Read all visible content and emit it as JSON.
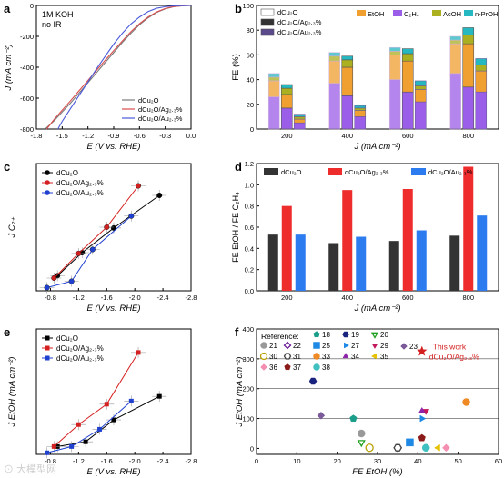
{
  "watermark": "⊙ 大模型网",
  "chart_data": [
    {
      "panel": "a",
      "type": "line",
      "annotations": [
        "1M KOH",
        "no IR"
      ],
      "xlabel": "E (V vs. RHE)",
      "ylabel": "J (mA cm⁻²)",
      "xlim": [
        -1.8,
        0.0
      ],
      "ylim": [
        -800,
        0
      ],
      "xticks": [
        "-1.8",
        "-1.5",
        "-1.2",
        "-0.9",
        "-0.6",
        "-0.3",
        "0.0"
      ],
      "yticks": [
        "0",
        "-200",
        "-400",
        "-600",
        "-800"
      ],
      "legend": [
        "dCu₂O",
        "dCu₂O/Ag₂.₃%",
        "dCu₂O/Au₂.₃%"
      ],
      "colors": [
        "#7a7a7a",
        "#d94c4c",
        "#4a5ad8"
      ],
      "series": [
        {
          "x": [
            0.0,
            -0.1,
            -0.2,
            -0.3,
            -0.4,
            -0.5,
            -0.6,
            -0.7,
            -0.8,
            -0.9,
            -1.0,
            -1.1,
            -1.2,
            -1.3,
            -1.4,
            -1.5,
            -1.6,
            -1.7
          ],
          "y": [
            0,
            -2,
            -8,
            -22,
            -45,
            -80,
            -125,
            -180,
            -240,
            -305,
            -370,
            -435,
            -500,
            -565,
            -630,
            -690,
            -750,
            -800
          ]
        },
        {
          "x": [
            0.0,
            -0.1,
            -0.2,
            -0.3,
            -0.4,
            -0.5,
            -0.6,
            -0.7,
            -0.8,
            -0.9,
            -1.0,
            -1.1,
            -1.2,
            -1.3,
            -1.4,
            -1.5,
            -1.6,
            -1.68
          ],
          "y": [
            0,
            -2,
            -7,
            -20,
            -42,
            -75,
            -118,
            -170,
            -230,
            -292,
            -355,
            -420,
            -485,
            -550,
            -615,
            -678,
            -742,
            -800
          ]
        },
        {
          "x": [
            0.0,
            -0.1,
            -0.2,
            -0.3,
            -0.4,
            -0.5,
            -0.6,
            -0.7,
            -0.8,
            -0.9,
            -1.0,
            -1.1,
            -1.2,
            -1.3,
            -1.4,
            -1.5,
            -1.55
          ],
          "y": [
            0,
            -1,
            -3,
            -8,
            -18,
            -40,
            -75,
            -120,
            -180,
            -250,
            -330,
            -410,
            -495,
            -580,
            -665,
            -750,
            -800
          ]
        }
      ]
    },
    {
      "panel": "b",
      "type": "bar",
      "xlabel": "J (mA cm⁻²)",
      "ylabel": "FE (%)",
      "ylim": [
        0,
        100
      ],
      "yticks": [
        "0",
        "20",
        "40",
        "60",
        "80",
        "100"
      ],
      "categories": [
        "200",
        "400",
        "600",
        "800"
      ],
      "legend_samples": [
        "dCu₂O",
        "dCu₂O/Ag₂.₃%",
        "dCu₂O/Au₂.₃%"
      ],
      "legend_products": [
        "EtOH",
        "C₂H₄",
        "AcOH",
        "n-PrOH"
      ],
      "product_colors": [
        "#f0a030",
        "#9b5ee8",
        "#aab020",
        "#25b8c0"
      ],
      "sample_edge_colors": [
        "#c8a4d8",
        "#555555",
        "#6b5b9a"
      ],
      "stacks": [
        {
          "name": "dCu₂O",
          "C2H4": [
            26,
            37,
            40,
            45
          ],
          "EtOH": [
            13,
            18,
            20,
            24
          ],
          "AcOH": [
            3,
            4,
            3,
            3
          ],
          "nPrOH": [
            3,
            3,
            3,
            3
          ]
        },
        {
          "name": "dCu₂O/Ag₂.₃%",
          "C2H4": [
            17,
            27,
            30,
            34
          ],
          "EtOH": [
            11,
            23,
            25,
            35
          ],
          "AcOH": [
            5,
            6,
            6,
            7
          ],
          "nPrOH": [
            3,
            3,
            4,
            6
          ]
        },
        {
          "name": "dCu₂O/Au₂.₃%",
          "C2H4": [
            5,
            10,
            22,
            30
          ],
          "EtOH": [
            3,
            5,
            10,
            17
          ],
          "AcOH": [
            2,
            2,
            3,
            5
          ],
          "nPrOH": [
            2,
            2,
            4,
            5
          ]
        }
      ]
    },
    {
      "panel": "c",
      "type": "line",
      "xlabel": "E (V vs. RHE)",
      "ylabel": "J C₂₊",
      "xlim": [
        -0.6,
        -2.8
      ],
      "ylim": [
        0,
        800
      ],
      "xticks": [
        "-0.8",
        "-1.2",
        "-1.6",
        "-2.0",
        "-2.4",
        "-2.8"
      ],
      "legend": [
        "dCu₂O",
        "dCu₂O/Ag₂.₃%",
        "dCu₂O/Au₂.₃%"
      ],
      "colors": [
        "#000000",
        "#d42020",
        "#2040d0"
      ],
      "series": [
        {
          "x": [
            -0.9,
            -1.25,
            -1.7,
            -2.35
          ],
          "y": [
            95,
            240,
            395,
            600
          ]
        },
        {
          "x": [
            -0.85,
            -1.2,
            -1.6,
            -2.05
          ],
          "y": [
            80,
            235,
            400,
            660
          ]
        },
        {
          "x": [
            -0.75,
            -1.1,
            -1.4,
            -1.95
          ],
          "y": [
            20,
            60,
            260,
            470
          ]
        }
      ]
    },
    {
      "panel": "d",
      "type": "bar",
      "xlabel": "J (mA cm⁻²)",
      "ylabel": "FE EtOH / FE C₂H₄",
      "ylim": [
        0,
        1.2
      ],
      "yticks": [
        "0.0",
        "0.2",
        "0.4",
        "0.6",
        "0.8",
        "1.0",
        "1.2"
      ],
      "categories": [
        "200",
        "400",
        "600",
        "800"
      ],
      "legend": [
        "dCu₂O",
        "dCu₂O/Ag₂.₃%",
        "dCu₂O/Au₂.₃%"
      ],
      "colors": [
        "#333333",
        "#ee2c2c",
        "#2c7cf0"
      ],
      "series": [
        {
          "name": "dCu₂O",
          "values": [
            0.53,
            0.45,
            0.47,
            0.52
          ]
        },
        {
          "name": "dCu₂O/Ag₂.₃%",
          "values": [
            0.8,
            0.95,
            0.96,
            1.17
          ]
        },
        {
          "name": "dCu₂O/Au₂.₃%",
          "values": [
            0.53,
            0.51,
            0.57,
            0.71
          ]
        }
      ]
    },
    {
      "panel": "e",
      "type": "line",
      "xlabel": "E (V vs. RHE)",
      "ylabel": "J EtOH (mA cm⁻²)",
      "xlim": [
        -0.6,
        -2.8
      ],
      "ylim": [
        0,
        400
      ],
      "xticks": [
        "-0.8",
        "-1.2",
        "-1.6",
        "-2.0",
        "-2.4",
        "-2.8"
      ],
      "legend": [
        "dCu₂O",
        "dCu₂O/Ag₂.₃%",
        "dCu₂O/Au₂.₃%"
      ],
      "colors": [
        "#000000",
        "#d42020",
        "#2040d0"
      ],
      "series": [
        {
          "x": [
            -0.9,
            -1.3,
            -1.7,
            -2.35
          ],
          "y": [
            25,
            40,
            110,
            185
          ]
        },
        {
          "x": [
            -0.85,
            -1.2,
            -1.6,
            -2.05
          ],
          "y": [
            25,
            95,
            160,
            325
          ]
        },
        {
          "x": [
            -0.75,
            -1.1,
            -1.5,
            -1.95
          ],
          "y": [
            5,
            25,
            80,
            170
          ]
        }
      ]
    },
    {
      "panel": "f",
      "type": "scatter",
      "xlabel": "FE EtOH (%)",
      "ylabel": "J EtOH (mA cm⁻²)",
      "xlim": [
        0,
        60
      ],
      "ylim": [
        -20,
        400
      ],
      "xticks": [
        "0",
        "10",
        "20",
        "30",
        "40",
        "50",
        "60"
      ],
      "yticks": [
        "0",
        "100",
        "200",
        "300",
        "400"
      ],
      "legend_title": "Reference:",
      "this_work": {
        "label": "This work",
        "label2": "dCu₂O/Ag₂.₃%",
        "x": 41,
        "y": 325,
        "color": "#d42020"
      },
      "references": [
        {
          "id": "18",
          "marker": "pentagon",
          "color": "#1a9e8a",
          "x": 24,
          "y": 100
        },
        {
          "id": "19",
          "marker": "hexagon",
          "color": "#1a237e",
          "x": 14,
          "y": 225
        },
        {
          "id": "20",
          "marker": "tri-down-open",
          "color": "#20a020",
          "x": 26,
          "y": 20
        },
        {
          "id": "21",
          "marker": "circle",
          "color": "#999999",
          "x": 26,
          "y": 50
        },
        {
          "id": "22",
          "marker": "diamond-open",
          "color": "#6a1b9a",
          "x": 35,
          "y": 2
        },
        {
          "id": "23",
          "marker": "diamond",
          "color": "#7b5a9a",
          "x": 16,
          "y": 110
        },
        {
          "id": "25",
          "marker": "square",
          "color": "#1e88e5",
          "x": 38,
          "y": 20
        },
        {
          "id": "27",
          "marker": "tri-right",
          "color": "#1e88e5",
          "x": 41,
          "y": 100
        },
        {
          "id": "29",
          "marker": "tri-down",
          "color": "#c2185b",
          "x": 42,
          "y": 125
        },
        {
          "id": "30",
          "marker": "circle-open",
          "color": "#b8a000",
          "x": 28,
          "y": 2
        },
        {
          "id": "31",
          "marker": "hexagon-open",
          "color": "#444444",
          "x": 35,
          "y": 2
        },
        {
          "id": "33",
          "marker": "circle",
          "color": "#f08a24",
          "x": 52,
          "y": 155
        },
        {
          "id": "34",
          "marker": "tri-up",
          "color": "#8e24aa",
          "x": 41,
          "y": 125
        },
        {
          "id": "35",
          "marker": "tri-left",
          "color": "#e6c200",
          "x": 45,
          "y": 2
        },
        {
          "id": "36",
          "marker": "diamond",
          "color": "#f48fb1",
          "x": 47,
          "y": 2
        },
        {
          "id": "37",
          "marker": "pentagon",
          "color": "#8b1a1a",
          "x": 41,
          "y": 35
        },
        {
          "id": "38",
          "marker": "circle",
          "color": "#40c0c0",
          "x": 42,
          "y": 2
        }
      ]
    }
  ]
}
